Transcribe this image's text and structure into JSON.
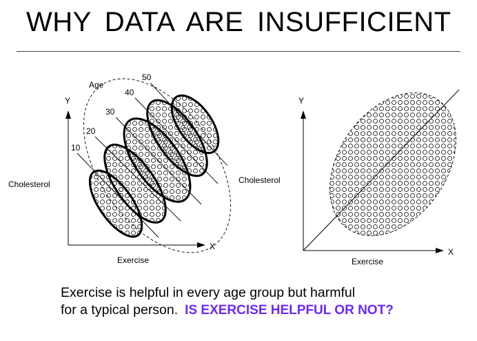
{
  "title": "WHY DATA ARE INSUFFICIENT",
  "left_diagram": {
    "y_axis": "Y",
    "x_axis": "X",
    "y_label": "Cholesterol",
    "x_label": "Exercise",
    "age_label": "Age",
    "age_groups": [
      "10",
      "20",
      "30",
      "40",
      "50"
    ]
  },
  "right_diagram": {
    "y_axis": "Y",
    "x_axis": "X",
    "y_label": "Cholesterol",
    "x_label": "Exercise"
  },
  "caption": {
    "line1": "Exercise is helpful in every age group but harmful",
    "line2": "for a typical person.",
    "question": "IS EXERCISE HELPFUL OR NOT?"
  },
  "colors": {
    "question": "#6a28ff"
  }
}
